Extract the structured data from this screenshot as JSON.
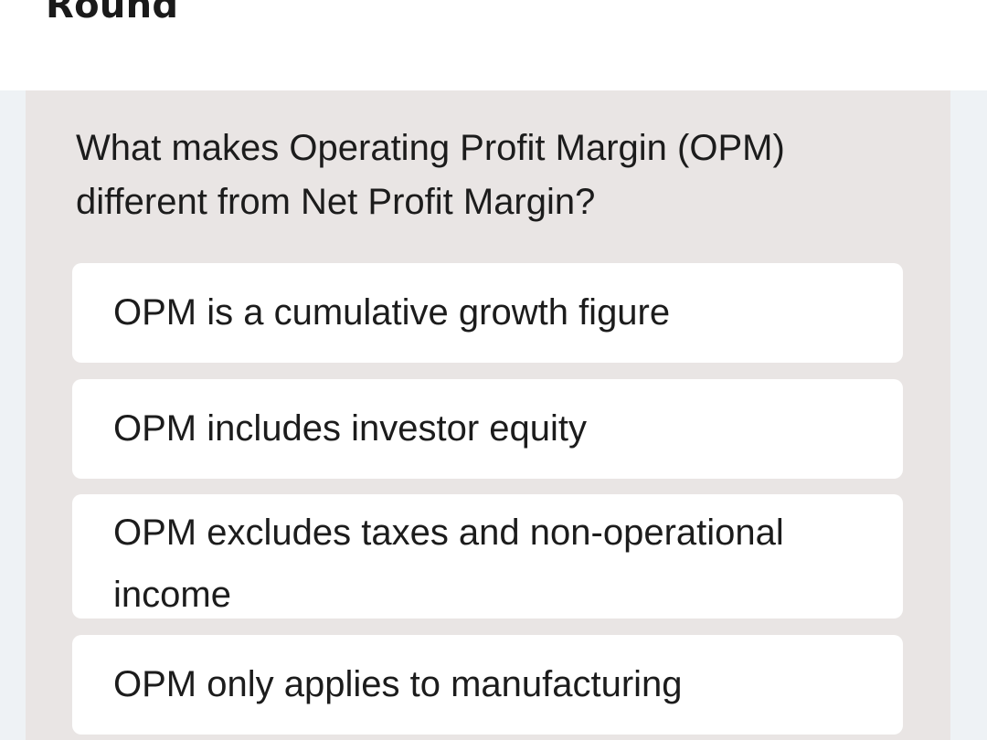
{
  "header": {
    "title": "Round"
  },
  "quiz": {
    "question": "What makes Operating Profit Margin (OPM) different from Net Profit Margin?",
    "options": [
      {
        "label": "OPM is a cumulative growth figure"
      },
      {
        "label": "OPM includes investor equity"
      },
      {
        "label": "OPM excludes taxes and non-operational income"
      },
      {
        "label": "OPM only applies to manufacturing"
      }
    ]
  },
  "colors": {
    "page_background": "#eef2f5",
    "header_background": "#ffffff",
    "card_background": "#e9e5e4",
    "option_background": "#ffffff",
    "text": "#1c1c1c"
  }
}
